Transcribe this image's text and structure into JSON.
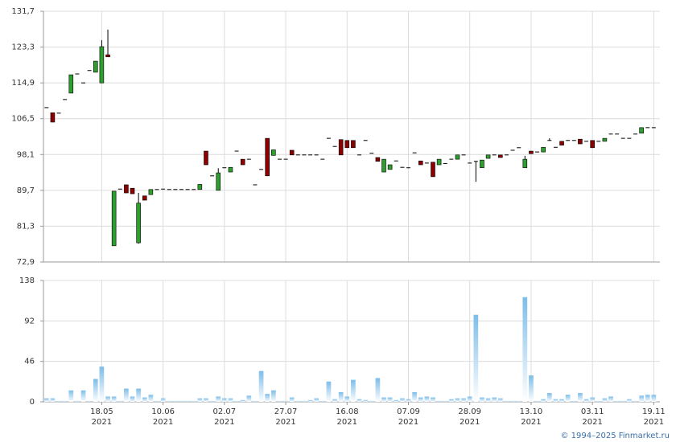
{
  "chart_data": [
    {
      "type": "candlestick",
      "up_color": "#2e9e2e",
      "down_color": "#8b0000",
      "flat_color": "#000000",
      "xlim": [
        -0.5,
        100
      ],
      "ylim": [
        72.9,
        131.7
      ],
      "yticks": [
        {
          "value": 72.9,
          "label": "72,9"
        },
        {
          "value": 81.3,
          "label": "81,3"
        },
        {
          "value": 89.7,
          "label": "89,7"
        },
        {
          "value": 98.1,
          "label": "98,1"
        },
        {
          "value": 106.5,
          "label": "106,5"
        },
        {
          "value": 114.9,
          "label": "114,9"
        },
        {
          "value": 123.3,
          "label": "123,3"
        },
        {
          "value": 131.7,
          "label": "131,7"
        }
      ],
      "grid": true,
      "open": [
        109.1,
        107.9,
        107.8,
        111.0,
        112.5,
        117.0,
        114.9,
        117.8,
        117.4,
        114.9,
        121.5,
        76.7,
        90.0,
        91.0,
        90.2,
        77.4,
        88.4,
        88.7,
        89.9,
        90.0,
        89.9,
        89.9,
        89.9,
        89.9,
        89.9,
        89.9,
        98.9,
        93.1,
        89.7,
        95.0,
        94.0,
        98.9,
        97.0,
        97.0,
        91.0,
        94.6,
        101.9,
        97.9,
        97.0,
        97.0,
        99.1,
        98.0,
        98.0,
        98.0,
        98.0,
        97.0,
        101.9,
        100.0,
        101.6,
        101.4,
        101.4,
        98.0,
        101.4,
        98.4,
        97.4,
        94.0,
        94.6,
        96.6,
        95.1,
        95.0,
        98.5,
        96.6,
        96.1,
        96.3,
        95.7,
        96.0,
        97.0,
        97.0,
        98.0,
        96.1,
        96.5,
        95.0,
        97.2,
        98.0,
        98.0,
        98.0,
        99.1,
        99.7,
        95.0,
        98.9,
        98.7,
        98.7,
        101.4,
        99.8,
        101.2,
        101.4,
        101.4,
        101.7,
        101.2,
        101.4,
        101.2,
        101.2,
        102.9,
        102.9,
        101.9,
        101.9,
        102.9,
        103.1,
        104.4,
        104.4
      ],
      "high": [
        109.1,
        107.9,
        107.8,
        111.0,
        116.8,
        117.0,
        114.9,
        117.8,
        120.0,
        124.9,
        127.4,
        89.5,
        90.0,
        91.0,
        90.2,
        89.1,
        88.4,
        89.9,
        89.9,
        90.0,
        89.9,
        89.9,
        89.9,
        89.9,
        89.9,
        91.1,
        98.9,
        93.1,
        94.9,
        95.0,
        95.1,
        98.9,
        97.0,
        97.0,
        91.0,
        94.6,
        101.9,
        99.2,
        97.0,
        97.0,
        99.1,
        98.0,
        98.0,
        98.0,
        98.0,
        97.0,
        101.9,
        100.0,
        101.6,
        101.4,
        101.4,
        98.0,
        101.4,
        98.4,
        97.4,
        97.0,
        95.7,
        96.6,
        95.1,
        95.0,
        98.5,
        96.6,
        96.1,
        96.3,
        97.0,
        96.0,
        97.0,
        98.0,
        98.0,
        96.1,
        96.5,
        96.8,
        98.0,
        98.0,
        98.0,
        98.0,
        99.1,
        99.7,
        97.8,
        98.9,
        98.7,
        99.8,
        101.9,
        99.8,
        101.2,
        101.4,
        101.4,
        101.7,
        101.2,
        101.4,
        101.2,
        101.9,
        102.9,
        102.9,
        101.9,
        101.9,
        102.9,
        104.4,
        104.4,
        104.4
      ],
      "low": [
        109.1,
        105.7,
        107.8,
        111.0,
        112.5,
        117.0,
        114.9,
        117.8,
        117.4,
        114.9,
        121.0,
        76.7,
        90.0,
        89.1,
        88.9,
        77.2,
        87.4,
        88.7,
        89.9,
        90.0,
        89.9,
        89.9,
        89.9,
        89.9,
        89.9,
        89.9,
        95.7,
        93.1,
        89.7,
        95.0,
        94.0,
        98.9,
        95.7,
        97.0,
        91.0,
        94.6,
        93.1,
        97.9,
        97.0,
        97.0,
        98.0,
        98.0,
        98.0,
        98.0,
        98.0,
        97.0,
        101.9,
        100.0,
        98.0,
        99.7,
        99.7,
        98.0,
        101.4,
        98.4,
        96.5,
        94.0,
        94.6,
        96.6,
        95.1,
        95.0,
        98.5,
        95.7,
        96.1,
        92.9,
        95.7,
        96.0,
        97.0,
        97.0,
        98.0,
        96.1,
        91.7,
        95.0,
        97.2,
        98.0,
        97.4,
        98.0,
        99.1,
        99.7,
        95.0,
        98.3,
        98.7,
        98.7,
        101.4,
        99.8,
        100.3,
        101.4,
        101.4,
        100.6,
        101.2,
        99.7,
        101.2,
        101.2,
        102.9,
        102.9,
        101.9,
        101.9,
        102.9,
        103.1,
        104.4,
        104.4
      ],
      "close": [
        109.1,
        105.7,
        107.8,
        111.0,
        116.8,
        117.0,
        114.9,
        117.8,
        120.0,
        123.4,
        121.0,
        89.5,
        90.0,
        89.1,
        88.9,
        86.7,
        87.4,
        89.9,
        89.9,
        90.0,
        89.9,
        89.9,
        89.9,
        89.9,
        89.9,
        91.1,
        95.7,
        93.1,
        93.8,
        95.0,
        95.1,
        98.9,
        95.7,
        97.0,
        91.0,
        94.6,
        93.1,
        99.2,
        97.0,
        97.0,
        98.0,
        98.0,
        98.0,
        98.0,
        98.0,
        97.0,
        101.9,
        100.0,
        98.0,
        99.7,
        99.7,
        98.0,
        101.4,
        98.4,
        96.5,
        97.0,
        95.7,
        96.6,
        95.1,
        95.0,
        98.5,
        95.7,
        96.1,
        92.9,
        97.0,
        96.0,
        97.0,
        98.0,
        98.0,
        96.1,
        96.5,
        96.8,
        98.0,
        98.0,
        97.4,
        98.0,
        99.1,
        99.7,
        97.0,
        98.3,
        98.7,
        99.8,
        101.4,
        99.8,
        100.3,
        101.4,
        101.4,
        100.6,
        101.2,
        99.7,
        101.2,
        101.9,
        102.9,
        102.9,
        101.9,
        101.9,
        102.9,
        104.4,
        104.4,
        104.4
      ]
    },
    {
      "type": "bar",
      "color": "#7dbde9",
      "xlim": [
        -0.5,
        100
      ],
      "ylim": [
        0,
        138
      ],
      "yticks": [
        0,
        46,
        92,
        138
      ],
      "grid": true,
      "xticks": [
        {
          "value": 9,
          "label": "18.05"
        },
        {
          "value": 19,
          "label": "10.06"
        },
        {
          "value": 29,
          "label": "02.07"
        },
        {
          "value": 39,
          "label": "27.07"
        },
        {
          "value": 49,
          "label": "16.08"
        },
        {
          "value": 59,
          "label": "07.09"
        },
        {
          "value": 69,
          "label": "28.09"
        },
        {
          "value": 79,
          "label": "13.10"
        },
        {
          "value": 89,
          "label": "03.11"
        },
        {
          "value": 99,
          "label": "19.11"
        }
      ],
      "xtick_sublabel": "2021",
      "values": [
        4,
        4,
        1,
        1,
        13,
        1,
        13,
        1,
        26,
        40,
        6,
        6,
        1,
        15,
        6,
        15,
        5,
        8,
        1,
        4,
        1,
        1,
        1,
        1,
        1,
        4,
        4,
        1,
        6,
        4,
        4,
        1,
        2,
        7,
        1,
        35,
        9,
        13,
        1,
        1,
        5,
        1,
        1,
        2,
        4,
        1,
        23,
        3,
        11,
        6,
        25,
        3,
        2,
        1,
        27,
        5,
        5,
        2,
        4,
        3,
        11,
        5,
        6,
        5,
        1,
        1,
        3,
        4,
        4,
        6,
        99,
        5,
        4,
        5,
        4,
        1,
        1,
        1,
        119,
        30,
        1,
        3,
        10,
        3,
        3,
        8,
        1,
        10,
        3,
        5,
        1,
        4,
        6,
        1,
        1,
        3,
        1,
        7,
        8,
        8
      ]
    }
  ],
  "copyright": "© 1994–2025 Finmarket.ru"
}
